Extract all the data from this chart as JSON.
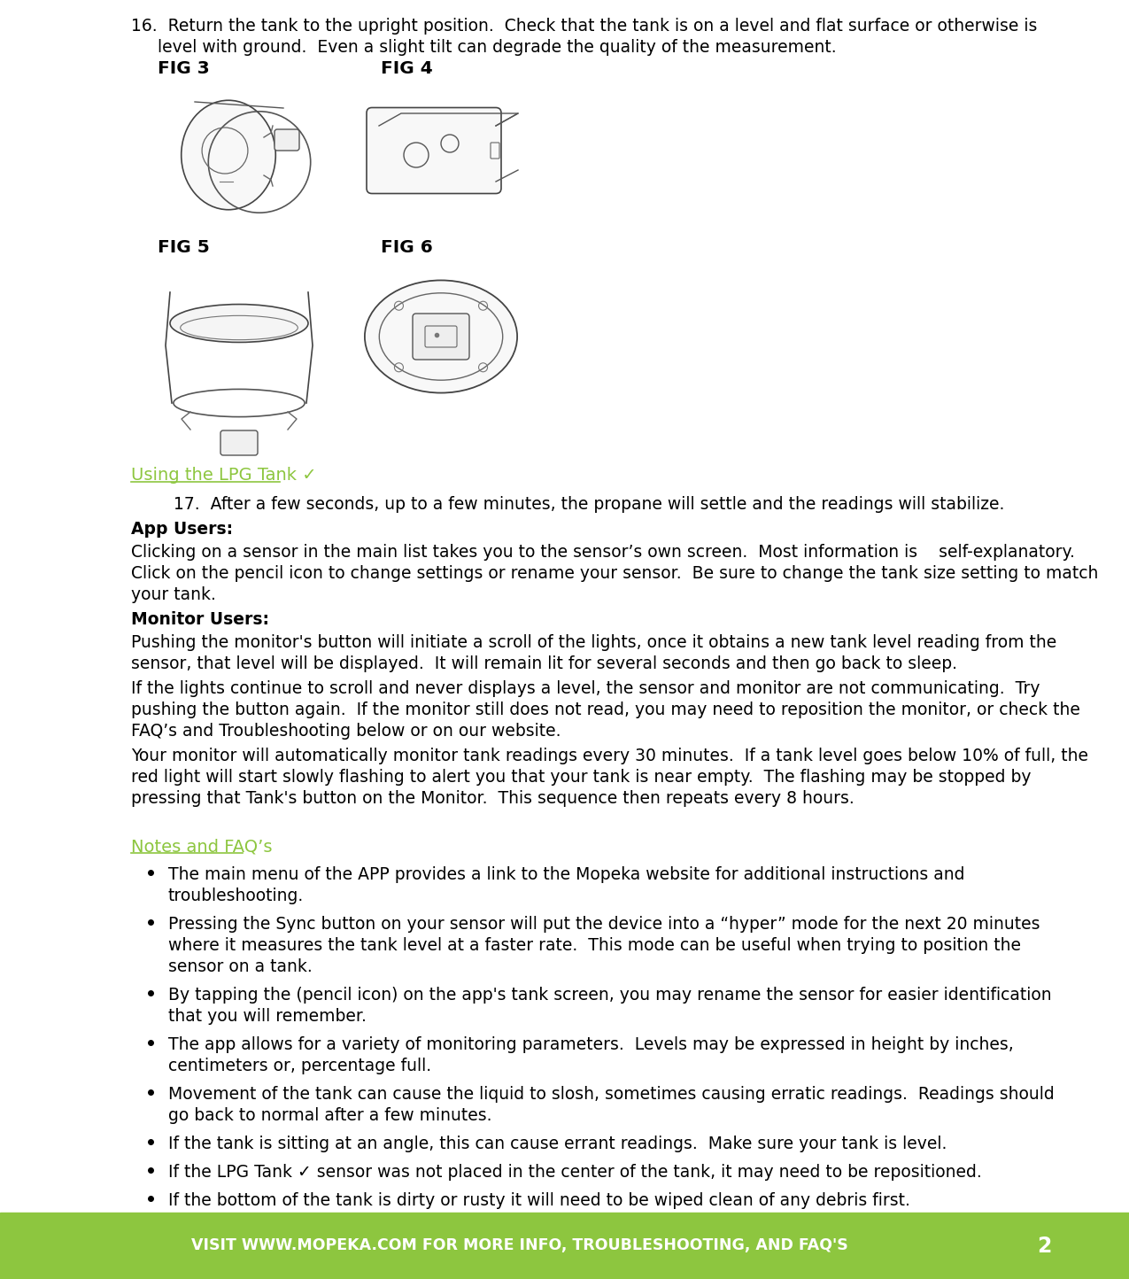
{
  "bg_color": "#ffffff",
  "footer_color": "#8dc63f",
  "footer_text": "VISIT WWW.MOPEKA.COM FOR MORE INFO, TROUBLESHOOTING, AND FAQ'S",
  "footer_page": "2",
  "footer_text_color": "#ffffff",
  "green_color": "#8dc63f",
  "text_color": "#000000",
  "fig3_label": "FIG 3",
  "fig4_label": "FIG 4",
  "fig5_label": "FIG 5",
  "fig6_label": "FIG 6",
  "section_heading": "Using the LPG Tank ✓",
  "notes_heading": "Notes and FAQ’s",
  "font_size_body": 13.5,
  "font_size_heading": 14.0,
  "font_size_footer": 12.5,
  "font_size_fig_label": 14.5,
  "lh_body": 24
}
